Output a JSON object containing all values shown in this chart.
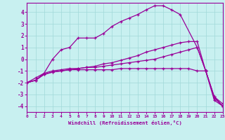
{
  "xlabel": "Windchill (Refroidissement éolien,°C)",
  "bg_color": "#c8f0f0",
  "line_color": "#990099",
  "grid_color": "#a0d8d8",
  "xlim": [
    0,
    23
  ],
  "ylim": [
    -4.5,
    4.8
  ],
  "xticks": [
    0,
    1,
    2,
    3,
    4,
    5,
    6,
    7,
    8,
    9,
    10,
    11,
    12,
    13,
    14,
    15,
    16,
    17,
    18,
    19,
    20,
    21,
    22,
    23
  ],
  "yticks": [
    -4,
    -3,
    -2,
    -1,
    0,
    1,
    2,
    3,
    4
  ],
  "line1_x": [
    0,
    1,
    2,
    3,
    4,
    5,
    6,
    7,
    8,
    9,
    10,
    11,
    12,
    13,
    14,
    15,
    16,
    17,
    18,
    20,
    21,
    22,
    23
  ],
  "line1_y": [
    -2.0,
    -1.8,
    -1.2,
    0.0,
    0.8,
    1.0,
    1.8,
    1.8,
    1.8,
    2.2,
    2.8,
    3.2,
    3.5,
    3.8,
    4.2,
    4.55,
    4.55,
    4.2,
    3.8,
    1.0,
    -1.0,
    -3.2,
    -4.0
  ],
  "line2_x": [
    0,
    1,
    2,
    3,
    4,
    5,
    6,
    7,
    8,
    9,
    10,
    11,
    12,
    13,
    14,
    15,
    16,
    17,
    18,
    19,
    20,
    21,
    22,
    23
  ],
  "line2_y": [
    -2.0,
    -1.8,
    -1.3,
    -1.1,
    -1.0,
    -0.9,
    -0.8,
    -0.7,
    -0.7,
    -0.6,
    -0.5,
    -0.4,
    -0.3,
    -0.2,
    -0.1,
    0.0,
    0.2,
    0.4,
    0.6,
    0.8,
    1.0,
    -1.0,
    -3.3,
    -4.0
  ],
  "line3_x": [
    0,
    1,
    2,
    3,
    4,
    5,
    6,
    7,
    8,
    9,
    10,
    11,
    12,
    13,
    14,
    15,
    16,
    17,
    18,
    19,
    20,
    21,
    22,
    23
  ],
  "line3_y": [
    -2.0,
    -1.8,
    -1.3,
    -1.1,
    -1.0,
    -0.9,
    -0.9,
    -0.9,
    -0.9,
    -0.9,
    -0.9,
    -0.8,
    -0.8,
    -0.8,
    -0.8,
    -0.8,
    -0.8,
    -0.8,
    -0.8,
    -0.8,
    -1.0,
    -1.0,
    -3.2,
    -3.8
  ],
  "line4_x": [
    0,
    1,
    2,
    3,
    4,
    5,
    6,
    7,
    8,
    9,
    10,
    11,
    12,
    13,
    14,
    15,
    16,
    17,
    18,
    19,
    20,
    21,
    22,
    23
  ],
  "line4_y": [
    -2.0,
    -1.6,
    -1.2,
    -1.0,
    -0.9,
    -0.8,
    -0.8,
    -0.7,
    -0.6,
    -0.4,
    -0.3,
    -0.1,
    0.1,
    0.3,
    0.6,
    0.8,
    1.0,
    1.2,
    1.4,
    1.5,
    1.5,
    -1.0,
    -3.5,
    -4.0
  ]
}
